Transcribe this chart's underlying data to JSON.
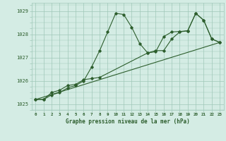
{
  "title": "Graphe pression niveau de la mer (hPa)",
  "background_color": "#d4ece4",
  "grid_color": "#9fc8b8",
  "line_color": "#2d5e2d",
  "marker_color": "#2d5e2d",
  "xlim": [
    -0.5,
    23.5
  ],
  "ylim": [
    1024.75,
    1029.35
  ],
  "yticks": [
    1025,
    1026,
    1027,
    1028,
    1029
  ],
  "xticks": [
    0,
    1,
    2,
    3,
    4,
    5,
    6,
    7,
    8,
    9,
    10,
    11,
    12,
    13,
    14,
    15,
    16,
    17,
    18,
    19,
    20,
    21,
    22,
    23
  ],
  "series": [
    {
      "x": [
        0,
        1,
        2,
        3,
        4,
        5,
        6,
        7,
        8,
        9,
        10,
        11,
        12,
        13,
        14,
        15,
        16,
        17,
        18,
        19,
        20,
        21,
        22,
        23
      ],
      "y": [
        1025.2,
        1025.2,
        1025.4,
        1025.5,
        1025.7,
        1025.8,
        1026.0,
        1026.6,
        1027.3,
        1028.1,
        1028.9,
        1028.85,
        1028.3,
        1027.6,
        1027.2,
        1027.3,
        1027.3,
        1027.8,
        1028.1,
        1028.15,
        1028.9,
        1028.6,
        1027.8,
        1027.65
      ],
      "has_markers": true
    },
    {
      "x": [
        0,
        1,
        2,
        3,
        4,
        5,
        6,
        7,
        8,
        14,
        15,
        16,
        17,
        18,
        19,
        20,
        21,
        22,
        23
      ],
      "y": [
        1025.2,
        1025.2,
        1025.5,
        1025.6,
        1025.8,
        1025.85,
        1026.05,
        1026.1,
        1026.15,
        1027.2,
        1027.25,
        1027.9,
        1028.1,
        1028.12,
        1028.15,
        1028.9,
        1028.6,
        1027.8,
        1027.65
      ],
      "has_markers": true
    },
    {
      "x": [
        0,
        23
      ],
      "y": [
        1025.2,
        1027.65
      ],
      "has_markers": false
    }
  ]
}
